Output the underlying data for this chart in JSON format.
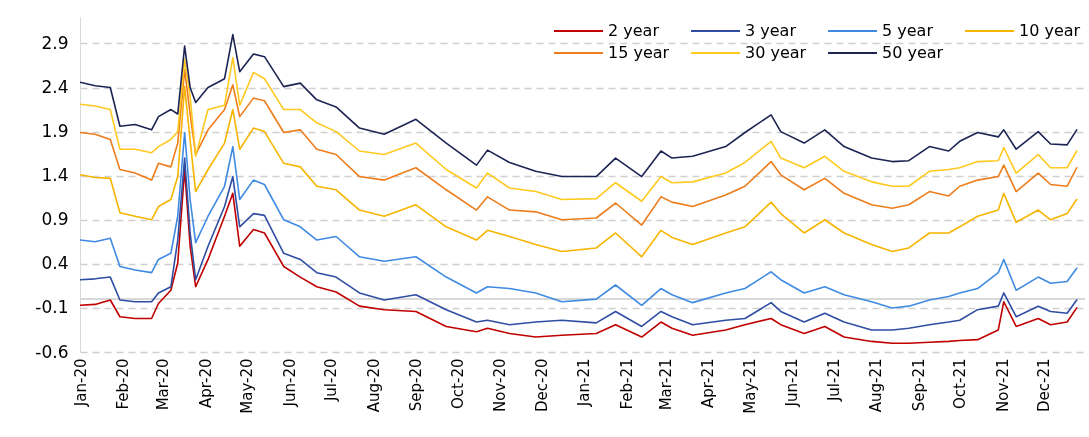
{
  "chart_data": {
    "type": "line",
    "x": [
      "2020-01-01",
      "2020-01-12",
      "2020-01-23",
      "2020-01-30",
      "2020-02-10",
      "2020-02-22",
      "2020-02-27",
      "2020-03-07",
      "2020-03-12",
      "2020-03-17",
      "2020-03-21",
      "2020-03-25",
      "2020-04-03",
      "2020-04-15",
      "2020-04-21",
      "2020-04-26",
      "2020-05-06",
      "2020-05-14",
      "2020-05-28",
      "2020-06-09",
      "2020-06-21",
      "2020-07-05",
      "2020-07-22",
      "2020-08-09",
      "2020-09-01",
      "2020-09-23",
      "2020-10-15",
      "2020-10-23",
      "2020-11-08",
      "2020-11-27",
      "2020-12-16",
      "2021-01-10",
      "2021-01-24",
      "2021-02-12",
      "2021-02-26",
      "2021-03-06",
      "2021-03-21",
      "2021-04-14",
      "2021-04-28",
      "2021-05-17",
      "2021-05-24",
      "2021-06-10",
      "2021-06-25",
      "2021-07-09",
      "2021-07-29",
      "2021-08-13",
      "2021-08-25",
      "2021-09-09",
      "2021-09-23",
      "2021-10-01",
      "2021-10-14",
      "2021-10-29",
      "2021-11-02",
      "2021-11-11",
      "2021-11-27",
      "2021-12-06",
      "2021-12-18",
      "2021-12-25"
    ],
    "series": [
      {
        "name": "2 year",
        "color": "#c00000",
        "values": [
          -0.07,
          -0.06,
          -0.01,
          -0.2,
          -0.22,
          -0.22,
          -0.05,
          0.1,
          0.41,
          1.47,
          0.6,
          0.14,
          0.45,
          0.94,
          1.2,
          0.6,
          0.79,
          0.75,
          0.37,
          0.25,
          0.14,
          0.08,
          -0.08,
          -0.12,
          -0.14,
          -0.31,
          -0.37,
          -0.33,
          -0.39,
          -0.43,
          -0.41,
          -0.39,
          -0.29,
          -0.43,
          -0.26,
          -0.33,
          -0.41,
          -0.35,
          -0.29,
          -0.22,
          -0.29,
          -0.39,
          -0.31,
          -0.43,
          -0.48,
          -0.5,
          -0.5,
          -0.49,
          -0.48,
          -0.47,
          -0.46,
          -0.35,
          -0.03,
          -0.31,
          -0.22,
          -0.29,
          -0.26,
          -0.1
        ]
      },
      {
        "name": "3 year",
        "color": "#2f4ea3",
        "values": [
          0.22,
          0.23,
          0.25,
          -0.01,
          -0.03,
          -0.03,
          0.07,
          0.14,
          0.67,
          1.6,
          0.75,
          0.22,
          0.6,
          1.05,
          1.39,
          0.82,
          0.97,
          0.95,
          0.52,
          0.45,
          0.3,
          0.25,
          0.07,
          -0.01,
          0.05,
          -0.12,
          -0.26,
          -0.24,
          -0.29,
          -0.26,
          -0.24,
          -0.27,
          -0.14,
          -0.31,
          -0.14,
          -0.2,
          -0.29,
          -0.24,
          -0.22,
          -0.04,
          -0.14,
          -0.26,
          -0.16,
          -0.26,
          -0.35,
          -0.35,
          -0.33,
          -0.29,
          -0.26,
          -0.24,
          -0.12,
          -0.08,
          0.07,
          -0.2,
          -0.08,
          -0.14,
          -0.16,
          -0.01
        ]
      },
      {
        "name": "5 year",
        "color": "#3f8be3",
        "values": [
          0.67,
          0.65,
          0.69,
          0.37,
          0.33,
          0.3,
          0.45,
          0.52,
          0.94,
          1.89,
          1.13,
          0.64,
          0.94,
          1.28,
          1.73,
          1.13,
          1.35,
          1.3,
          0.9,
          0.82,
          0.67,
          0.71,
          0.48,
          0.43,
          0.48,
          0.25,
          0.07,
          0.14,
          0.12,
          0.07,
          -0.03,
          0.0,
          0.16,
          -0.07,
          0.12,
          0.05,
          -0.04,
          0.07,
          0.12,
          0.31,
          0.22,
          0.07,
          0.14,
          0.05,
          -0.03,
          -0.1,
          -0.08,
          -0.01,
          0.03,
          0.07,
          0.12,
          0.3,
          0.45,
          0.1,
          0.25,
          0.18,
          0.2,
          0.35
        ]
      },
      {
        "name": "10 year",
        "color": "#f7b500",
        "values": [
          1.41,
          1.38,
          1.37,
          0.98,
          0.94,
          0.9,
          1.05,
          1.13,
          1.39,
          2.41,
          1.8,
          1.22,
          1.47,
          1.77,
          2.15,
          1.7,
          1.94,
          1.9,
          1.54,
          1.5,
          1.28,
          1.24,
          1.01,
          0.94,
          1.07,
          0.82,
          0.67,
          0.78,
          0.71,
          0.62,
          0.54,
          0.58,
          0.75,
          0.48,
          0.78,
          0.7,
          0.62,
          0.75,
          0.82,
          1.1,
          0.97,
          0.75,
          0.9,
          0.75,
          0.62,
          0.54,
          0.58,
          0.75,
          0.75,
          0.82,
          0.94,
          1.01,
          1.2,
          0.87,
          1.01,
          0.9,
          0.97,
          1.13
        ]
      },
      {
        "name": "15 year",
        "color": "#ed7d1c",
        "values": [
          1.89,
          1.87,
          1.81,
          1.47,
          1.43,
          1.35,
          1.54,
          1.5,
          1.77,
          2.6,
          2.1,
          1.64,
          1.92,
          2.15,
          2.43,
          2.07,
          2.28,
          2.25,
          1.89,
          1.92,
          1.7,
          1.64,
          1.39,
          1.35,
          1.49,
          1.24,
          1.01,
          1.16,
          1.01,
          0.99,
          0.9,
          0.92,
          1.09,
          0.84,
          1.16,
          1.1,
          1.05,
          1.18,
          1.28,
          1.56,
          1.41,
          1.24,
          1.37,
          1.2,
          1.07,
          1.03,
          1.07,
          1.22,
          1.17,
          1.28,
          1.35,
          1.39,
          1.52,
          1.22,
          1.43,
          1.3,
          1.28,
          1.49
        ]
      },
      {
        "name": "30 year",
        "color": "#ffc91f",
        "values": [
          2.21,
          2.19,
          2.15,
          1.7,
          1.7,
          1.66,
          1.73,
          1.81,
          1.9,
          2.72,
          2.3,
          1.62,
          2.15,
          2.2,
          2.74,
          2.2,
          2.57,
          2.5,
          2.15,
          2.15,
          2.0,
          1.9,
          1.68,
          1.64,
          1.77,
          1.47,
          1.26,
          1.43,
          1.26,
          1.22,
          1.13,
          1.14,
          1.32,
          1.11,
          1.39,
          1.32,
          1.33,
          1.43,
          1.55,
          1.79,
          1.6,
          1.49,
          1.62,
          1.45,
          1.33,
          1.28,
          1.28,
          1.45,
          1.47,
          1.49,
          1.56,
          1.57,
          1.72,
          1.43,
          1.64,
          1.49,
          1.49,
          1.68
        ]
      },
      {
        "name": "50 year",
        "color": "#1c2453",
        "values": [
          2.46,
          2.42,
          2.4,
          1.96,
          1.98,
          1.92,
          2.07,
          2.15,
          2.1,
          2.87,
          2.4,
          2.23,
          2.4,
          2.5,
          3.0,
          2.58,
          2.78,
          2.75,
          2.41,
          2.45,
          2.26,
          2.18,
          1.94,
          1.87,
          2.04,
          1.77,
          1.52,
          1.69,
          1.55,
          1.45,
          1.39,
          1.39,
          1.6,
          1.39,
          1.68,
          1.6,
          1.62,
          1.73,
          1.89,
          2.09,
          1.9,
          1.77,
          1.92,
          1.73,
          1.6,
          1.56,
          1.57,
          1.73,
          1.68,
          1.79,
          1.89,
          1.84,
          1.92,
          1.7,
          1.9,
          1.76,
          1.75,
          1.92
        ]
      }
    ],
    "xlim": [
      "2020-01-01",
      "2021-12-31"
    ],
    "xticks": [
      {
        "value": "2020-01-01",
        "label": "Jan-20"
      },
      {
        "value": "2020-02-01",
        "label": "Feb-20"
      },
      {
        "value": "2020-03-01",
        "label": "Mar-20"
      },
      {
        "value": "2020-04-01",
        "label": "Apr-20"
      },
      {
        "value": "2020-05-01",
        "label": "May-20"
      },
      {
        "value": "2020-06-01",
        "label": "Jun-20"
      },
      {
        "value": "2020-07-01",
        "label": "Jul-20"
      },
      {
        "value": "2020-08-01",
        "label": "Aug-20"
      },
      {
        "value": "2020-09-01",
        "label": "Sep-20"
      },
      {
        "value": "2020-10-01",
        "label": "Oct-20"
      },
      {
        "value": "2020-11-01",
        "label": "Nov-20"
      },
      {
        "value": "2020-12-01",
        "label": "Dec-20"
      },
      {
        "value": "2021-01-01",
        "label": "Jan-21"
      },
      {
        "value": "2021-02-01",
        "label": "Feb-21"
      },
      {
        "value": "2021-03-01",
        "label": "Mar-21"
      },
      {
        "value": "2021-04-01",
        "label": "Apr-21"
      },
      {
        "value": "2021-05-01",
        "label": "May-21"
      },
      {
        "value": "2021-06-01",
        "label": "Jun-21"
      },
      {
        "value": "2021-07-01",
        "label": "Jul-21"
      },
      {
        "value": "2021-08-01",
        "label": "Aug-21"
      },
      {
        "value": "2021-09-01",
        "label": "Sep-21"
      },
      {
        "value": "2021-10-01",
        "label": "Oct-21"
      },
      {
        "value": "2021-11-01",
        "label": "Nov-21"
      },
      {
        "value": "2021-12-01",
        "label": "Dec-21"
      }
    ],
    "ylim": [
      -0.6,
      3.2
    ],
    "yticks": [
      -0.6,
      -0.1,
      0.4,
      0.9,
      1.4,
      1.9,
      2.4,
      2.9
    ],
    "ref_lines": [
      {
        "axis": "y",
        "value": 0,
        "color": "#d9d9d9"
      }
    ],
    "grid": "y",
    "legend": "top right",
    "line_style": "solid",
    "marker": "none"
  }
}
